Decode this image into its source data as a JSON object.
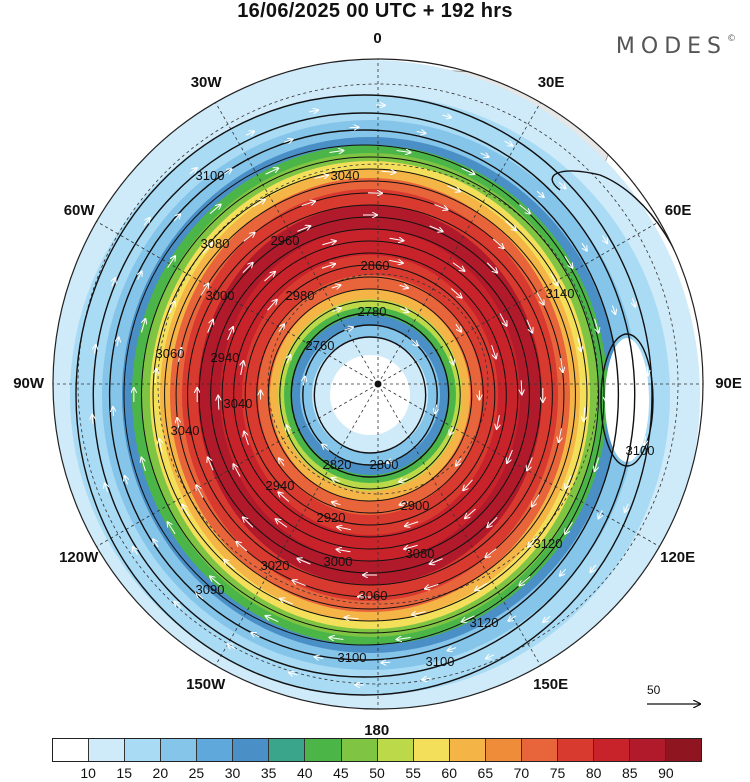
{
  "title": "16/06/2025  00 UTC  + 192 hrs",
  "brand": "MODES",
  "brand_mark": "©",
  "lon_labels": [
    {
      "text": "0",
      "lon": 0
    },
    {
      "text": "30E",
      "lon": 30
    },
    {
      "text": "60E",
      "lon": 60
    },
    {
      "text": "90E",
      "lon": 90
    },
    {
      "text": "120E",
      "lon": 120
    },
    {
      "text": "150E",
      "lon": 150
    },
    {
      "text": "180",
      "lon": 180
    },
    {
      "text": "150W",
      "lon": -150
    },
    {
      "text": "120W",
      "lon": -120
    },
    {
      "text": "90W",
      "lon": -90
    },
    {
      "text": "60W",
      "lon": -60
    },
    {
      "text": "30W",
      "lon": -30
    }
  ],
  "contour_labels": [
    "3100",
    "3040",
    "3080",
    "2960",
    "2980",
    "3000",
    "2860",
    "2780",
    "2760",
    "3060",
    "3040",
    "2940",
    "3040",
    "2820",
    "2800",
    "2940",
    "2920",
    "2900",
    "3020",
    "3000",
    "3090",
    "3080",
    "3060",
    "3100",
    "3100",
    "3120",
    "3140",
    "3100",
    "3120"
  ],
  "colorbar": {
    "colors": [
      "#ffffff",
      "#cfeaf8",
      "#a9dbf4",
      "#85c5ea",
      "#5fa8dc",
      "#4a8fc6",
      "#3aa58a",
      "#4cb548",
      "#7fc543",
      "#bcd94a",
      "#f4df5a",
      "#f5b446",
      "#ef8c3a",
      "#e8643a",
      "#d83a2f",
      "#c8232b",
      "#b01a2a",
      "#8f1520"
    ],
    "ticks": [
      "10",
      "15",
      "20",
      "25",
      "30",
      "35",
      "40",
      "45",
      "50",
      "55",
      "60",
      "65",
      "70",
      "75",
      "80",
      "85",
      "90"
    ]
  },
  "vector_reference": "50"
}
